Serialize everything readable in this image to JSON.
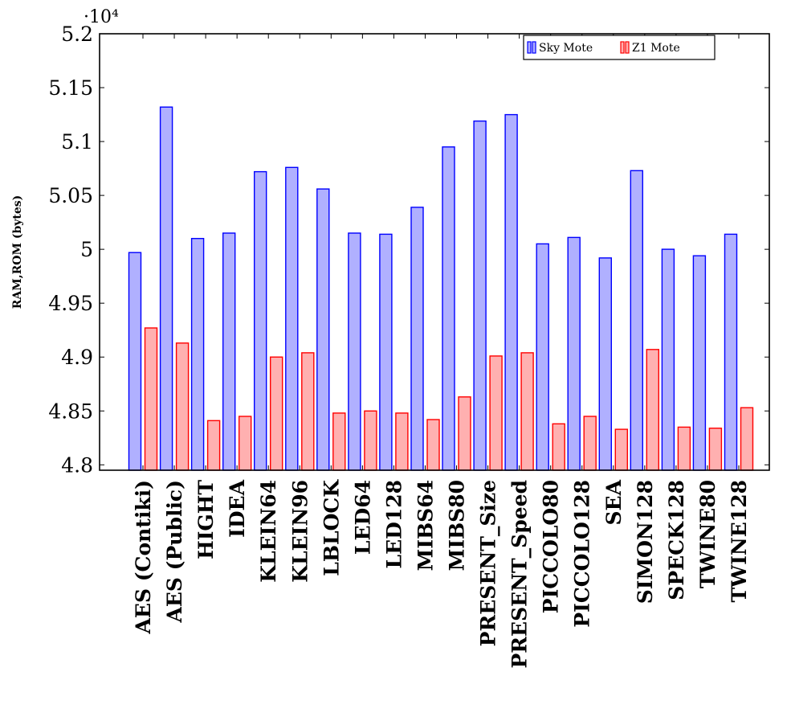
{
  "chart_data": {
    "type": "bar",
    "ylabel": "RAM,ROM (bytes)",
    "y_multiplier_label": "·10⁴",
    "ylim": [
      4.795,
      5.2
    ],
    "yticks": [
      4.8,
      4.85,
      4.9,
      4.95,
      5,
      5.05,
      5.1,
      5.15,
      5.2
    ],
    "ytick_labels": [
      "4.8",
      "4.85",
      "4.9",
      "4.95",
      "5",
      "5.05",
      "5.1",
      "5.15",
      "5.2"
    ],
    "categories": [
      "AES (Contiki)",
      "AES (Public)",
      "HIGHT",
      "IDEA",
      "KLEIN64",
      "KLEIN96",
      "LBLOCK",
      "LED64",
      "LED128",
      "MIBS64",
      "MIBS80",
      "PRESENT_Size",
      "PRESENT_Speed",
      "PICCOLO80",
      "PICCOLO128",
      "SEA",
      "SIMON128",
      "SPECK128",
      "TWINE80",
      "TWINE128"
    ],
    "series": [
      {
        "name": "Sky Mote",
        "color": "#0000ff",
        "fill": "#b0b0ff",
        "values": [
          4.997,
          5.132,
          5.01,
          5.015,
          5.072,
          5.076,
          5.056,
          5.015,
          5.014,
          5.039,
          5.095,
          5.119,
          5.125,
          5.005,
          5.011,
          4.992,
          5.073,
          5.0,
          4.994,
          5.014
        ]
      },
      {
        "name": "Z1 Mote",
        "color": "#ff0000",
        "fill": "#ffb0b0",
        "values": [
          4.927,
          4.913,
          4.841,
          4.845,
          4.9,
          4.904,
          4.848,
          4.85,
          4.848,
          4.842,
          4.863,
          4.901,
          4.904,
          4.838,
          4.845,
          4.833,
          4.907,
          4.835,
          4.834,
          4.853
        ]
      }
    ],
    "legend_position": "top-right",
    "grid": false
  }
}
